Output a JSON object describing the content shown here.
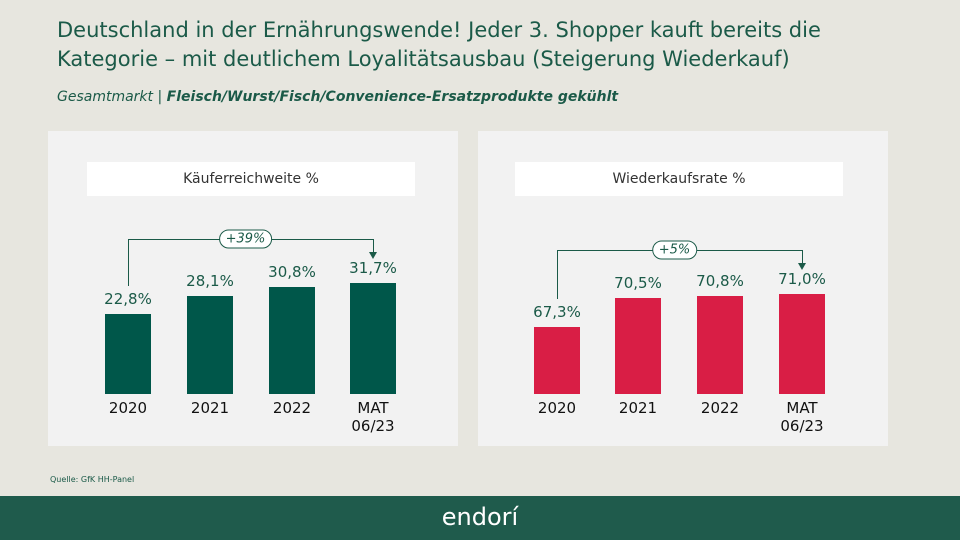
{
  "header": {
    "title": "Deutschland in der Ernährungswende! Jeder 3. Shopper kauft bereits die Kategorie – mit deutlichem Loyalitätsausbau (Steigerung Wiederkauf)",
    "subtitle_prefix": "Gesamtmarkt |",
    "subtitle_main": "Fleisch/Wurst/Fisch/Convenience-Ersatzprodukte gekühlt"
  },
  "chart_data": [
    {
      "type": "bar",
      "title": "Käuferreichweite %",
      "categories": [
        "2020",
        "2021",
        "2022",
        "MAT 06/23"
      ],
      "values": [
        22.8,
        28.1,
        30.8,
        31.7
      ],
      "value_labels": [
        "22,8%",
        "28,1%",
        "30,8%",
        "31,7%"
      ],
      "color": "#00574a",
      "ylim": [
        0,
        47
      ],
      "annotation": "+39%"
    },
    {
      "type": "bar",
      "title": "Wiederkaufsrate %",
      "categories": [
        "2020",
        "2021",
        "2022",
        "MAT 06/23"
      ],
      "values": [
        67.3,
        70.5,
        70.8,
        71.0
      ],
      "value_labels": [
        "67,3%",
        "70,5%",
        "70,8%",
        "71,0%"
      ],
      "color": "#d91e45",
      "ylim": [
        60,
        78
      ],
      "annotation": "+5%"
    }
  ],
  "footer": {
    "source": "Quelle: GfK HH-Panel",
    "logo": "endorí"
  }
}
